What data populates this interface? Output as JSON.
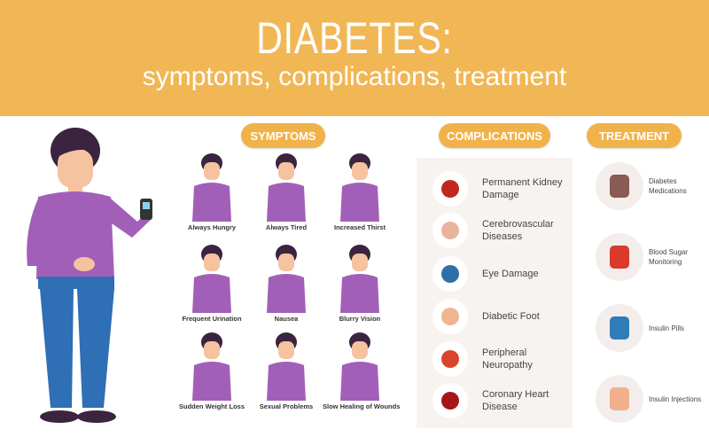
{
  "header": {
    "title": "DIABETES:",
    "subtitle": "symptoms, complications, treatment"
  },
  "sections": {
    "symptoms": "SYMPTOMS",
    "complications": "COMPLICATIONS",
    "treatment": "TREATMENT"
  },
  "symptoms": [
    {
      "label": "Always Hungry",
      "icon": "burger-icon"
    },
    {
      "label": "Always Tired",
      "icon": "low-battery-icon"
    },
    {
      "label": "Increased Thirst",
      "icon": "water-bottle-icon"
    },
    {
      "label": "Frequent Urination",
      "icon": "toilet-icon"
    },
    {
      "label": "Nausea",
      "icon": "nausea-icon"
    },
    {
      "label": "Blurry Vision",
      "icon": "glasses-icon"
    },
    {
      "label": "Sudden Weight Loss",
      "icon": "weight-loss-icon"
    },
    {
      "label": "Sexual Problems",
      "icon": "male-symbol-icon"
    },
    {
      "label": "Slow Healing of Wounds",
      "icon": "wound-icon"
    }
  ],
  "complications": [
    {
      "label": "Permanent Kidney Damage",
      "icon": "kidney-icon",
      "color": "#C0281E"
    },
    {
      "label": "Cerebrovascular Diseases",
      "icon": "brain-icon",
      "color": "#E9B49C"
    },
    {
      "label": "Eye Damage",
      "icon": "eye-icon",
      "color": "#2E6FA8"
    },
    {
      "label": "Diabetic Foot",
      "icon": "foot-icon",
      "color": "#F0B48E"
    },
    {
      "label": "Peripheral Neuropathy",
      "icon": "neuron-icon",
      "color": "#D8452A"
    },
    {
      "label": "Coronary Heart Disease",
      "icon": "heart-icon",
      "color": "#A5161B"
    }
  ],
  "treatment": [
    {
      "label": "Diabetes Medications",
      "icon": "medicine-bottle-icon",
      "color": "#8A5A55"
    },
    {
      "label": "Blood Sugar Monitoring",
      "icon": "glucose-monitor-icon",
      "color": "#D93A2B"
    },
    {
      "label": "Insulin Pills",
      "icon": "pills-icon",
      "color": "#2E7DB8"
    },
    {
      "label": "Insulin Injections",
      "icon": "syringe-icon",
      "color": "#F0B08C"
    }
  ],
  "colors": {
    "accent": "#F1B755",
    "shirt": "#A25FB8",
    "hair": "#3A2440",
    "jeans": "#2E6FB5",
    "skin": "#F5C3A0"
  }
}
